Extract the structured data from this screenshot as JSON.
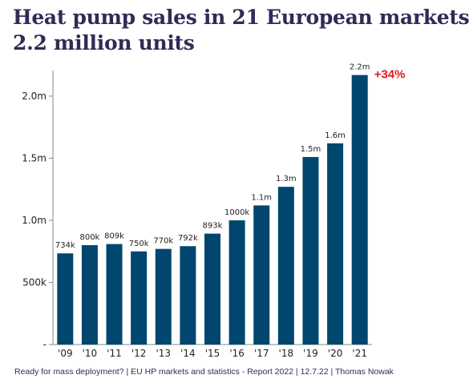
{
  "header": {
    "title_line1": "Heat pump sales in 21 European markets",
    "title_line2": "2.2 million units"
  },
  "chart_data": {
    "type": "bar",
    "categories": [
      "'09",
      "'10",
      "'11",
      "'12",
      "'13",
      "'14",
      "'15",
      "'16",
      "'17",
      "'18",
      "'19",
      "'20",
      "'21"
    ],
    "values": [
      734000,
      800000,
      809000,
      750000,
      770000,
      792000,
      893000,
      1000000,
      1120000,
      1270000,
      1510000,
      1620000,
      2170000
    ],
    "data_labels": [
      "734k",
      "800k",
      "809k",
      "750k",
      "770k",
      "792k",
      "893k",
      "1000k",
      "1.1m",
      "1.3m",
      "1.5m",
      "1.6m",
      "2.2m"
    ],
    "ylim": [
      0,
      2250000
    ],
    "y_ticks": [
      {
        "value": 0,
        "label": "-"
      },
      {
        "value": 500000,
        "label": "500k"
      },
      {
        "value": 1000000,
        "label": "1.0m"
      },
      {
        "value": 1500000,
        "label": "1.5m"
      },
      {
        "value": 2000000,
        "label": "2.0m"
      }
    ],
    "annotation": "+34%",
    "grid": false,
    "colors": {
      "bar": "#00466e",
      "annotation": "#e8191b",
      "text": "#222222",
      "axis": "#888888"
    }
  },
  "footer": {
    "source": "Ready for mass deployment? | EU  HP markets and statistics - Report 2022 | 12.7.22 | Thomas Nowak"
  }
}
